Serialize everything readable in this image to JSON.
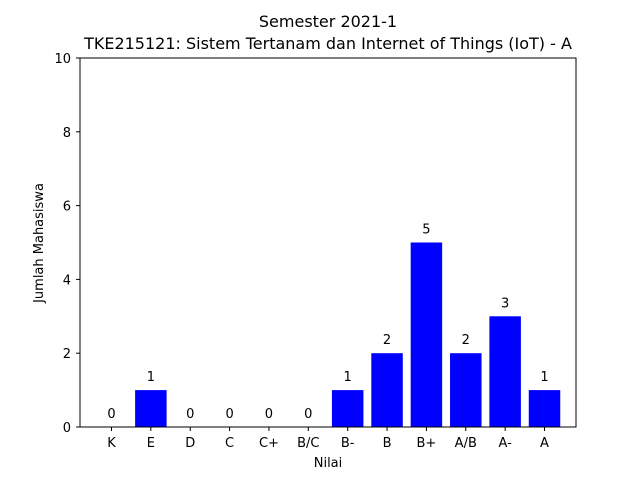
{
  "chart_data": {
    "type": "bar",
    "title": "Semester 2021-1",
    "subtitle": "TKE215121: Sistem Tertanam dan Internet of Things (IoT) - A",
    "xlabel": "Nilai",
    "ylabel": "Jumlah Mahasiswa",
    "categories": [
      "K",
      "E",
      "D",
      "C",
      "C+",
      "B/C",
      "B-",
      "B",
      "B+",
      "A/B",
      "A-",
      "A"
    ],
    "values": [
      0,
      1,
      0,
      0,
      0,
      0,
      1,
      2,
      5,
      2,
      3,
      1
    ],
    "ylim": [
      0,
      10
    ],
    "yticks": [
      0,
      2,
      4,
      6,
      8,
      10
    ],
    "grid": false,
    "bar_color": "#0000ff",
    "data_labels": true
  }
}
